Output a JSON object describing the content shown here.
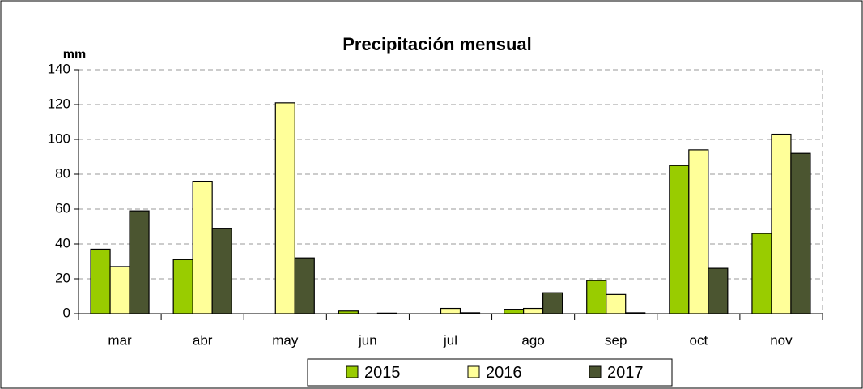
{
  "chart_data": {
    "type": "bar",
    "title": "Precipitación mensual",
    "y_label": "mm",
    "categories": [
      "mar",
      "abr",
      "may",
      "jun",
      "jul",
      "ago",
      "sep",
      "oct",
      "nov"
    ],
    "series": [
      {
        "name": "2015",
        "color": "#99cc00",
        "values": [
          37,
          31,
          0,
          1.5,
          0,
          2.5,
          19,
          85,
          46
        ]
      },
      {
        "name": "2016",
        "color": "#ffff99",
        "values": [
          27,
          76,
          121,
          0,
          3,
          3,
          11,
          94,
          103
        ]
      },
      {
        "name": "2017",
        "color": "#4b5530",
        "values": [
          59,
          49,
          32,
          0.3,
          0.5,
          12,
          0.5,
          26,
          92
        ]
      }
    ],
    "ylim": [
      0,
      140
    ],
    "yticks": [
      0,
      20,
      40,
      60,
      80,
      100,
      120,
      140
    ],
    "grid": true,
    "legend": "bottom"
  }
}
